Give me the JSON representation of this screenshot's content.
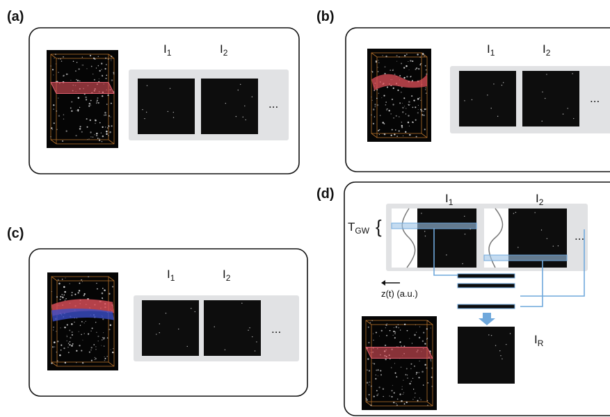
{
  "panels": [
    {
      "label": "(a)",
      "frames": [
        {
          "base": "I",
          "sub": "1"
        },
        {
          "base": "I",
          "sub": "2"
        }
      ],
      "more": "..."
    },
    {
      "label": "(b)",
      "frames": [
        {
          "base": "I",
          "sub": "1"
        },
        {
          "base": "I",
          "sub": "2"
        }
      ],
      "more": "..."
    },
    {
      "label": "(c)",
      "frames": [
        {
          "base": "I",
          "sub": "1"
        },
        {
          "base": "I",
          "sub": "2"
        }
      ],
      "more": "..."
    },
    {
      "label": "(d)",
      "frames": [
        {
          "base": "I",
          "sub": "1"
        },
        {
          "base": "I",
          "sub": "2"
        }
      ],
      "more": "...",
      "window": {
        "base": "T",
        "sub": "GW"
      },
      "brace": "{",
      "axis_label": "z(t) (a.u.)",
      "result": {
        "base": "I",
        "sub": "R"
      }
    }
  ]
}
